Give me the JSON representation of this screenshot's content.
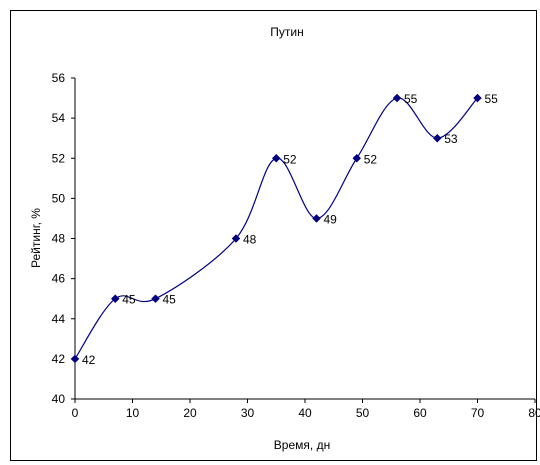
{
  "chart_data": {
    "type": "line",
    "title": "Путин",
    "xlabel": "Время, дн",
    "ylabel": "Рейтинг, %",
    "xlim": [
      0,
      80
    ],
    "ylim": [
      40,
      56
    ],
    "x_ticks": [
      "0",
      "10",
      "20",
      "30",
      "40",
      "50",
      "60",
      "70",
      "80"
    ],
    "y_ticks": [
      "40",
      "42",
      "44",
      "46",
      "48",
      "50",
      "52",
      "54",
      "56"
    ],
    "grid": false,
    "smoothed": true,
    "colors": {
      "line": "#000080",
      "marker": "#000080"
    },
    "series": [
      {
        "x": [
          0,
          7,
          14,
          28,
          35,
          42,
          49,
          56,
          63,
          70
        ],
        "values": [
          42,
          45,
          45,
          48,
          52,
          49,
          52,
          55,
          53,
          55
        ],
        "data_labels": [
          "42",
          "45",
          "45",
          "48",
          "52",
          "49",
          "52",
          "55",
          "53",
          "55"
        ]
      }
    ]
  }
}
